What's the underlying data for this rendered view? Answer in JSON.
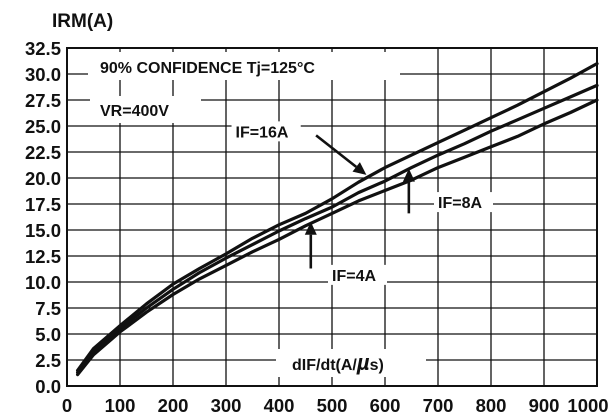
{
  "chart_data": {
    "type": "line",
    "ylabel": "IRM(A)",
    "xlabel": "dIF/dt(A/µs)",
    "xlabel_prefix": "dIF/dt(A/",
    "xlabel_mu": "µ",
    "xlabel_suffix": "s)",
    "annotations": {
      "confidence": "90% CONFIDENCE Tj=125°C",
      "vr": "VR=400V"
    },
    "xlim": [
      0,
      1000
    ],
    "ylim": [
      0,
      32.5
    ],
    "x_ticks": [
      0,
      100,
      200,
      300,
      400,
      500,
      600,
      700,
      800,
      900,
      1000
    ],
    "x_tick_labels": [
      "0",
      "100",
      "200",
      "300",
      "400",
      "500",
      "600",
      "700",
      "800",
      "900",
      "1000"
    ],
    "y_ticks": [
      0,
      2.5,
      5,
      7.5,
      10,
      12.5,
      15,
      17.5,
      20,
      22.5,
      25,
      27.5,
      30,
      32.5
    ],
    "y_tick_labels": [
      "0.0",
      "2.5",
      "5.0",
      "7.5",
      "10.0",
      "12.5",
      "15.0",
      "17.5",
      "20.0",
      "22.5",
      "25.0",
      "27.5",
      "30.0",
      "32.5"
    ],
    "grid": true,
    "series": [
      {
        "name": "IF=16A",
        "x": [
          20,
          50,
          100,
          150,
          200,
          250,
          300,
          350,
          400,
          450,
          500,
          550,
          600,
          650,
          700,
          750,
          800,
          850,
          900,
          950,
          1000
        ],
        "values": [
          1.5,
          3.6,
          5.8,
          7.9,
          9.8,
          11.3,
          12.7,
          14.2,
          15.5,
          16.6,
          18.0,
          19.6,
          21.0,
          22.2,
          23.4,
          24.6,
          25.8,
          27.0,
          28.3,
          29.6,
          31.0
        ]
      },
      {
        "name": "IF=8A",
        "x": [
          20,
          50,
          100,
          150,
          200,
          250,
          300,
          350,
          400,
          450,
          500,
          550,
          600,
          650,
          700,
          750,
          800,
          850,
          900,
          950,
          1000
        ],
        "values": [
          1.3,
          3.3,
          5.5,
          7.5,
          9.3,
          10.9,
          12.3,
          13.6,
          14.9,
          16.1,
          17.2,
          18.6,
          19.7,
          21.0,
          22.2,
          23.3,
          24.5,
          25.6,
          26.7,
          27.8,
          28.9
        ]
      },
      {
        "name": "IF=4A",
        "x": [
          20,
          50,
          100,
          150,
          200,
          250,
          300,
          350,
          400,
          450,
          500,
          550,
          600,
          650,
          700,
          750,
          800,
          850,
          900,
          950,
          1000
        ],
        "values": [
          1.1,
          3.0,
          5.2,
          7.1,
          8.8,
          10.3,
          11.6,
          12.9,
          14.1,
          15.4,
          16.6,
          17.8,
          18.8,
          19.8,
          21.0,
          22.0,
          23.0,
          24.0,
          25.2,
          26.3,
          27.5
        ]
      }
    ],
    "label_anchors": [
      {
        "series": "IF=16A",
        "text_x": 318,
        "text_y": 24.1,
        "tip_x": 565,
        "tip_y": 20.3,
        "tail_x": 470,
        "tail_y": 24.1
      },
      {
        "series": "IF=8A",
        "text_x": 700,
        "text_y": 17.3,
        "tip_x": 645,
        "tip_y": 20.9,
        "tail_x": 645,
        "tail_y": 16.6
      },
      {
        "series": "IF=4A",
        "text_x": 500,
        "text_y": 10.3,
        "tip_x": 460,
        "tip_y": 15.8,
        "tail_x": 460,
        "tail_y": 11.3
      }
    ]
  }
}
